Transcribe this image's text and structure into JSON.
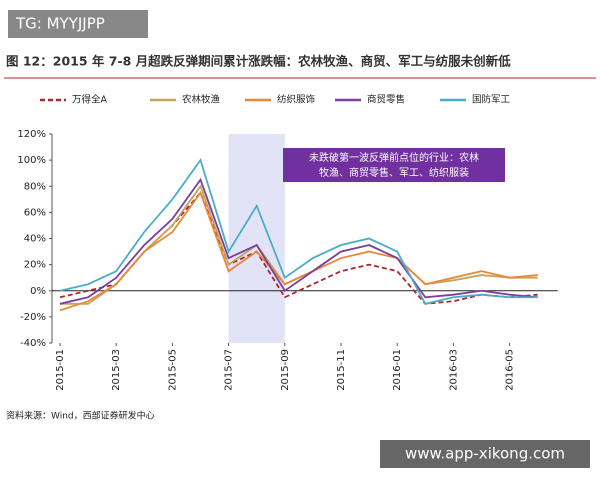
{
  "watermark_top": "TG: MYYJJPP",
  "watermark_bottom": "www.app-xikong.com",
  "source": "资料来源：Wind，西部证券研发中心",
  "chart_data": {
    "type": "line",
    "title": "图 12：2015 年 7-8 月超跌反弹期间累计涨跌幅：农林牧渔、商贸、军工与纺服未创新低",
    "annotation": [
      "未跌破第一波反弹前点位的行业：农林",
      "牧渔、商贸零售、军工、纺织服装"
    ],
    "highlight": [
      "2015-07",
      "2015-09"
    ],
    "x": [
      "2015-01",
      "2015-02",
      "2015-03",
      "2015-04",
      "2015-05",
      "2015-06",
      "2015-07",
      "2015-08",
      "2015-09",
      "2015-10",
      "2015-11",
      "2015-12",
      "2016-01",
      "2016-02",
      "2016-03",
      "2016-04",
      "2016-05",
      "2016-06"
    ],
    "xticks": [
      "2015-01",
      "2015-03",
      "2015-05",
      "2015-07",
      "2015-09",
      "2015-11",
      "2016-01",
      "2016-03",
      "2016-05"
    ],
    "ylim": [
      -40,
      120
    ],
    "yticks": [
      {
        "value": -40,
        "label": "-40%"
      },
      {
        "value": -20,
        "label": "-20%"
      },
      {
        "value": 0,
        "label": "0%"
      },
      {
        "value": 20,
        "label": "20%"
      },
      {
        "value": 40,
        "label": "40%"
      },
      {
        "value": 60,
        "label": "60%"
      },
      {
        "value": 80,
        "label": "80%"
      },
      {
        "value": 100,
        "label": "100%"
      },
      {
        "value": 120,
        "label": "120%"
      }
    ],
    "grid": false,
    "series": [
      {
        "name": "万得全A",
        "color": "#a52a2e",
        "dashed": true,
        "values": [
          -5,
          0,
          5,
          30,
          50,
          75,
          20,
          30,
          -5,
          5,
          15,
          20,
          15,
          -10,
          -8,
          -3,
          -5,
          -3
        ]
      },
      {
        "name": "农林牧渔",
        "color": "#c4a35a",
        "dashed": false,
        "values": [
          -10,
          -10,
          5,
          30,
          50,
          80,
          20,
          35,
          5,
          15,
          30,
          35,
          25,
          5,
          8,
          12,
          10,
          10
        ]
      },
      {
        "name": "纺织服饰",
        "color": "#e8883a",
        "dashed": false,
        "values": [
          -15,
          -8,
          5,
          30,
          45,
          75,
          15,
          30,
          5,
          15,
          25,
          30,
          25,
          5,
          10,
          15,
          10,
          12
        ]
      },
      {
        "name": "商贸零售",
        "color": "#7b3f9e",
        "dashed": false,
        "values": [
          -10,
          -5,
          10,
          35,
          55,
          85,
          25,
          35,
          0,
          15,
          30,
          35,
          25,
          -5,
          -3,
          0,
          -3,
          -5
        ]
      },
      {
        "name": "国防军工",
        "color": "#4bacc6",
        "dashed": false,
        "values": [
          0,
          5,
          15,
          45,
          70,
          100,
          30,
          65,
          10,
          25,
          35,
          40,
          30,
          -10,
          -5,
          -3,
          -5,
          -5
        ]
      }
    ]
  }
}
